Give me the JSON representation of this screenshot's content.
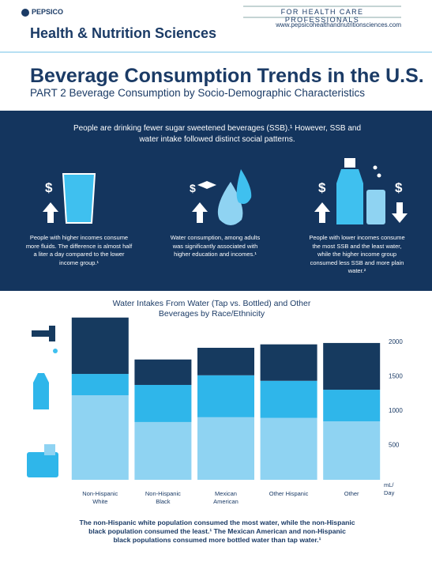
{
  "header": {
    "brand": "PEPSICO",
    "title": "Health & Nutrition Sciences",
    "tagline": "FOR HEALTH CARE PROFESSIONALS",
    "url": "www.pepsicohealthandnutritionsciences.com"
  },
  "page": {
    "title": "Beverage Consumption Trends in the U.S.",
    "subtitle": "PART 2 Beverage Consumption by Socio-Demographic Characteristics"
  },
  "intro": "People are drinking fewer sugar sweetened beverages (SSB).¹ However, SSB and water intake followed distinct social patterns.",
  "icons": {
    "dollar": "$"
  },
  "facts": [
    "People with higher incomes consume more fluids. The difference is almost half a liter a day compared to the lower income group.¹",
    "Water consumption, among adults was significantly associated with higher education and incomes.¹",
    "People with lower incomes consume the most SSB and the least water, while the higher income group consumed less SSB and more plain water.²"
  ],
  "chart_data": {
    "type": "bar",
    "stacked": true,
    "title": "Water Intakes From Water (Tap vs. Bottled) and Other Beverages by Race/Ethnicity",
    "y_label": "mL/ Day",
    "categories": [
      "Non-Hispanic White",
      "Non-Hispanic Black",
      "Mexican American",
      "Other Hispanic",
      "Other"
    ],
    "series": [
      {
        "color": "#8fd3f2",
        "values": [
          1230,
          840,
          910,
          900,
          850
        ]
      },
      {
        "color": "#2fb6ea",
        "values": [
          310,
          540,
          610,
          540,
          460
        ]
      },
      {
        "color": "#163a5f",
        "values": [
          820,
          370,
          400,
          530,
          680
        ]
      }
    ],
    "ylim": [
      0,
      2380
    ],
    "yticks": [
      500,
      1000,
      1500,
      2000
    ]
  },
  "footer": "The non-Hispanic white population consumed the most water, while the non-Hispanic black population consumed the least.¹ The Mexican American and non-Hispanic black populations consumed more bottled water than tap water.¹"
}
